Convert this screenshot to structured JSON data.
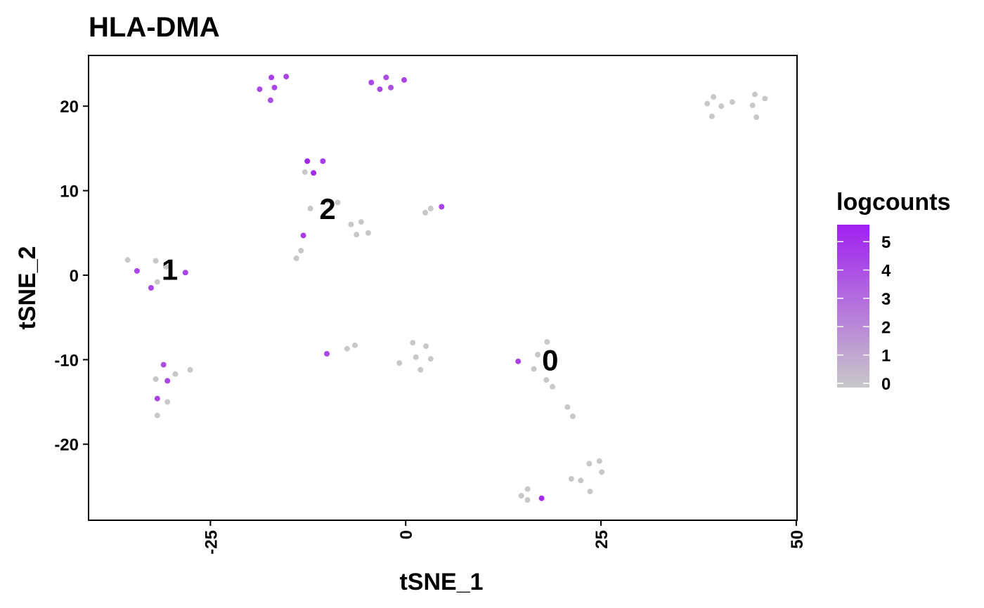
{
  "chart_data": {
    "type": "scatter",
    "title": "HLA-DMA",
    "xlabel": "tSNE_1",
    "ylabel": "tSNE_2",
    "xlim": [
      -40.6,
      50.1
    ],
    "ylim": [
      -29,
      26
    ],
    "x_ticks": [
      -25,
      0,
      25,
      50
    ],
    "x_tick_labels": [
      "-25",
      "0",
      "25",
      "50"
    ],
    "y_ticks": [
      -20,
      -10,
      0,
      10,
      20
    ],
    "y_tick_labels": [
      "-20",
      "-10",
      "0",
      "10",
      "20"
    ],
    "grid": false,
    "legend": {
      "title": "logcounts",
      "placement": "right",
      "min": 0,
      "max": 5.6,
      "ticks": [
        0,
        1,
        2,
        3,
        4,
        5
      ],
      "tick_labels": [
        "0",
        "1",
        "2",
        "3",
        "4",
        "5"
      ],
      "low_color": "#C8C8C8",
      "high_color": "#A020F0"
    },
    "cluster_labels": [
      {
        "text": "0",
        "x": 18.5,
        "y": -10
      },
      {
        "text": "1",
        "x": -30.2,
        "y": 0.7
      },
      {
        "text": "2",
        "x": -10.0,
        "y": 7.9
      }
    ],
    "points": [
      {
        "x": -18.7,
        "y": 22.0,
        "v": 4.2
      },
      {
        "x": -17.2,
        "y": 23.4,
        "v": 4.5
      },
      {
        "x": -16.8,
        "y": 22.2,
        "v": 4.3
      },
      {
        "x": -17.3,
        "y": 20.7,
        "v": 4.0
      },
      {
        "x": -15.3,
        "y": 23.5,
        "v": 4.4
      },
      {
        "x": -4.4,
        "y": 22.8,
        "v": 4.3
      },
      {
        "x": -3.3,
        "y": 22.0,
        "v": 4.2
      },
      {
        "x": -2.5,
        "y": 23.4,
        "v": 4.1
      },
      {
        "x": -1.9,
        "y": 22.2,
        "v": 4.0
      },
      {
        "x": -0.2,
        "y": 23.1,
        "v": 4.4
      },
      {
        "x": 38.6,
        "y": 20.3,
        "v": 0
      },
      {
        "x": 39.4,
        "y": 21.1,
        "v": 0
      },
      {
        "x": 39.2,
        "y": 18.8,
        "v": 0
      },
      {
        "x": 40.4,
        "y": 20.0,
        "v": 0
      },
      {
        "x": 41.8,
        "y": 20.5,
        "v": 0
      },
      {
        "x": 44.4,
        "y": 20.1,
        "v": 0
      },
      {
        "x": 44.7,
        "y": 21.4,
        "v": 0
      },
      {
        "x": 44.9,
        "y": 18.7,
        "v": 0
      },
      {
        "x": 46.0,
        "y": 20.9,
        "v": 0
      },
      {
        "x": -12.9,
        "y": 12.2,
        "v": 0
      },
      {
        "x": -12.6,
        "y": 13.5,
        "v": 5.4
      },
      {
        "x": -11.8,
        "y": 12.1,
        "v": 5.2
      },
      {
        "x": -10.6,
        "y": 13.5,
        "v": 4.6
      },
      {
        "x": -12.2,
        "y": 7.9,
        "v": 0
      },
      {
        "x": -10.0,
        "y": 8.8,
        "v": 0
      },
      {
        "x": -8.7,
        "y": 8.6,
        "v": 0
      },
      {
        "x": -7.0,
        "y": 6.0,
        "v": 0
      },
      {
        "x": -6.3,
        "y": 4.8,
        "v": 0
      },
      {
        "x": -5.7,
        "y": 6.3,
        "v": 0
      },
      {
        "x": -4.8,
        "y": 5.0,
        "v": 0
      },
      {
        "x": -13.1,
        "y": 4.7,
        "v": 4.6
      },
      {
        "x": -13.4,
        "y": 2.9,
        "v": 0
      },
      {
        "x": -14.0,
        "y": 2.0,
        "v": 0
      },
      {
        "x": 2.5,
        "y": 7.4,
        "v": 0
      },
      {
        "x": 3.2,
        "y": 7.9,
        "v": 0
      },
      {
        "x": 4.6,
        "y": 8.1,
        "v": 4.5
      },
      {
        "x": -35.6,
        "y": 1.8,
        "v": 0
      },
      {
        "x": -34.4,
        "y": 0.5,
        "v": 4.4
      },
      {
        "x": -32.6,
        "y": -1.5,
        "v": 4.3
      },
      {
        "x": -32.0,
        "y": 1.7,
        "v": 0
      },
      {
        "x": -31.8,
        "y": -0.8,
        "v": 0
      },
      {
        "x": -30.7,
        "y": 1.0,
        "v": 0
      },
      {
        "x": -28.2,
        "y": 0.3,
        "v": 4.4
      },
      {
        "x": -31.0,
        "y": -10.6,
        "v": 4.1
      },
      {
        "x": -32.0,
        "y": -12.3,
        "v": 0
      },
      {
        "x": -30.5,
        "y": -12.5,
        "v": 4.3
      },
      {
        "x": -29.5,
        "y": -11.7,
        "v": 0
      },
      {
        "x": -27.6,
        "y": -11.2,
        "v": 0
      },
      {
        "x": -31.8,
        "y": -14.6,
        "v": 4.4
      },
      {
        "x": -30.5,
        "y": -15.0,
        "v": 0
      },
      {
        "x": -31.8,
        "y": -16.6,
        "v": 0
      },
      {
        "x": -10.1,
        "y": -9.3,
        "v": 4.3
      },
      {
        "x": -7.5,
        "y": -8.7,
        "v": 0
      },
      {
        "x": -6.5,
        "y": -8.3,
        "v": 0
      },
      {
        "x": -0.8,
        "y": -10.4,
        "v": 0
      },
      {
        "x": 0.9,
        "y": -8.0,
        "v": 0
      },
      {
        "x": 1.3,
        "y": -9.7,
        "v": 0
      },
      {
        "x": 1.9,
        "y": -11.2,
        "v": 0
      },
      {
        "x": 2.6,
        "y": -8.4,
        "v": 0
      },
      {
        "x": 3.2,
        "y": -9.9,
        "v": 0
      },
      {
        "x": 14.4,
        "y": -10.2,
        "v": 4.5
      },
      {
        "x": 16.4,
        "y": -11.1,
        "v": 0
      },
      {
        "x": 16.9,
        "y": -9.4,
        "v": 0
      },
      {
        "x": 18.1,
        "y": -7.9,
        "v": 0
      },
      {
        "x": 18.0,
        "y": -12.4,
        "v": 0
      },
      {
        "x": 18.8,
        "y": -13.2,
        "v": 0
      },
      {
        "x": 20.7,
        "y": -15.6,
        "v": 0
      },
      {
        "x": 21.4,
        "y": -16.7,
        "v": 0
      },
      {
        "x": 21.2,
        "y": -24.1,
        "v": 0
      },
      {
        "x": 22.4,
        "y": -24.3,
        "v": 0
      },
      {
        "x": 23.5,
        "y": -22.3,
        "v": 0
      },
      {
        "x": 24.8,
        "y": -22.0,
        "v": 0
      },
      {
        "x": 25.1,
        "y": -23.3,
        "v": 0
      },
      {
        "x": 23.6,
        "y": -25.6,
        "v": 0
      },
      {
        "x": 14.8,
        "y": -26.1,
        "v": 0
      },
      {
        "x": 15.6,
        "y": -26.6,
        "v": 0
      },
      {
        "x": 15.6,
        "y": -25.3,
        "v": 0
      },
      {
        "x": 17.4,
        "y": -26.4,
        "v": 5.2
      }
    ]
  }
}
